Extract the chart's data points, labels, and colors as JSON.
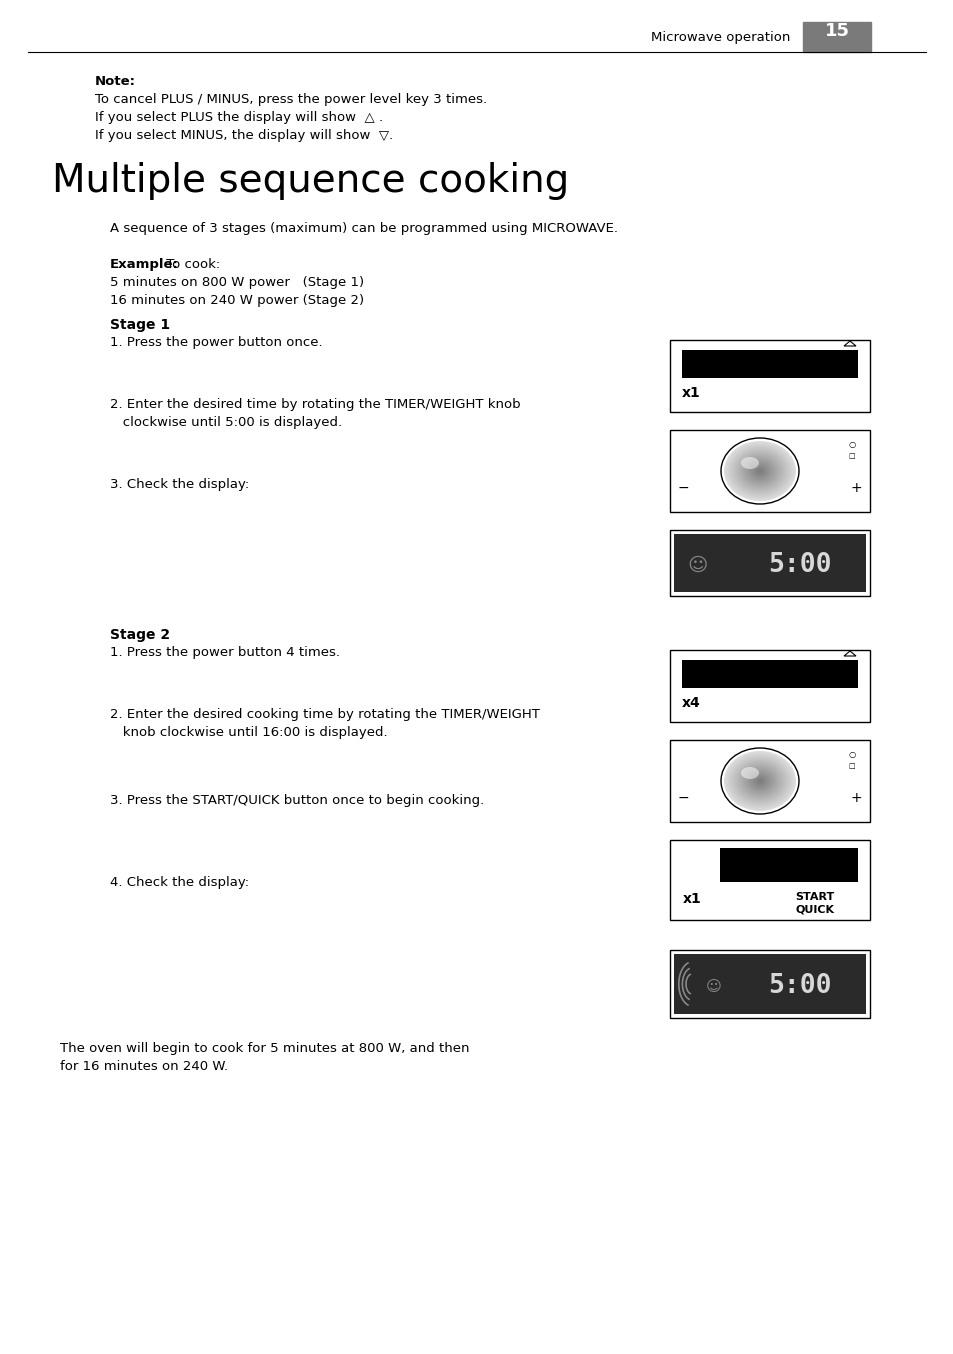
{
  "page_header": "Microwave operation",
  "page_number": "15",
  "note_bold": "Note:",
  "note_lines": [
    "To cancel PLUS / MINUS, press the power level key 3 times.",
    "If you select PLUS the display will show  △ .",
    "If you select MINUS, the display will show  ▽."
  ],
  "title": "Multiple sequence cooking",
  "intro": "A sequence of 3 stages (maximum) can be programmed using MICROWAVE.",
  "example_bold": "Example:",
  "example_text": " To cook:",
  "example_lines": [
    "5 minutes on 800 W power   (Stage 1)",
    "16 minutes on 240 W power (Stage 2)"
  ],
  "stage1_bold": "Stage 1",
  "stage1_steps": [
    "1. Press the power button once.",
    "2. Enter the desired time by rotating the TIMER/WEIGHT knob",
    "   clockwise until 5:00 is displayed.",
    "3. Check the display:"
  ],
  "stage2_bold": "Stage 2",
  "stage2_steps": [
    "1. Press the power button 4 times.",
    "2. Enter the desired cooking time by rotating the TIMER/WEIGHT",
    "   knob clockwise until 16:00 is displayed.",
    "3. Press the START/QUICK button once to begin cooking.",
    "4. Check the display:"
  ],
  "footer_lines": [
    "The oven will begin to cook for 5 minutes at 800 W, and then",
    "for 16 minutes on 240 W."
  ],
  "bg_color": "#ffffff",
  "text_color": "#000000",
  "header_bg": "#7a7a7a",
  "display_bg": "#2a2a2a",
  "display_text": "#d8d8d8"
}
